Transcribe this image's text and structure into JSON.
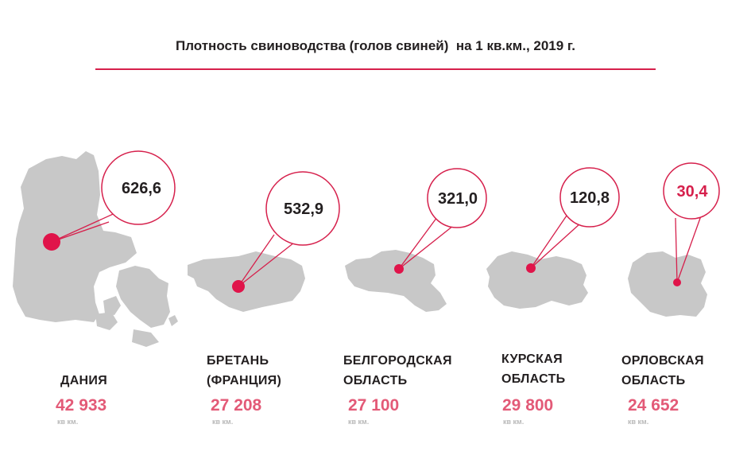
{
  "title": "Плотность свиноводства (голов свиней)  на 1 кв.км., 2019 г.",
  "colors": {
    "accent": "#d6204c",
    "map_fill": "#c8c8c8",
    "area_text": "#e35a77",
    "unit_text": "#b9b9b9",
    "value_text": "#231f20",
    "value_text_highlight": "#d6204c"
  },
  "chart_data": {
    "type": "bar",
    "title": "Плотность свиноводства (голов свиней)  на 1 кв.км., 2019 г.",
    "categories": [
      "ДАНИЯ",
      "БРЕТАНЬ (ФРАНЦИЯ)",
      "БЕЛГОРОДСКАЯ ОБЛАСТЬ",
      "КУРСКАЯ ОБЛАСТЬ",
      "ОРЛОВСКАЯ ОБЛАСТЬ"
    ],
    "series": [
      {
        "values": [
          626.6,
          532.9,
          321.0,
          120.8,
          30.4
        ]
      }
    ]
  },
  "regions": [
    {
      "name_lines": [
        "ДАНИЯ"
      ],
      "density_label": "626,6",
      "area": "42 933",
      "unit": "кв км.",
      "highlight": false
    },
    {
      "name_lines": [
        "БРЕТАНЬ",
        "(ФРАНЦИЯ)"
      ],
      "density_label": "532,9",
      "area": "27 208",
      "unit": "кв км.",
      "highlight": false
    },
    {
      "name_lines": [
        "БЕЛГОРОДСКАЯ",
        "ОБЛАСТЬ"
      ],
      "density_label": "321,0",
      "area": "27 100",
      "unit": "кв км.",
      "highlight": false
    },
    {
      "name_lines": [
        "КУРСКАЯ",
        "ОБЛАСТЬ"
      ],
      "density_label": "120,8",
      "area": "29 800",
      "unit": "кв км.",
      "highlight": false
    },
    {
      "name_lines": [
        "ОРЛОВСКАЯ",
        "ОБЛАСТЬ"
      ],
      "density_label": "30,4",
      "area": "24 652",
      "unit": "кв км.",
      "highlight": true
    }
  ]
}
